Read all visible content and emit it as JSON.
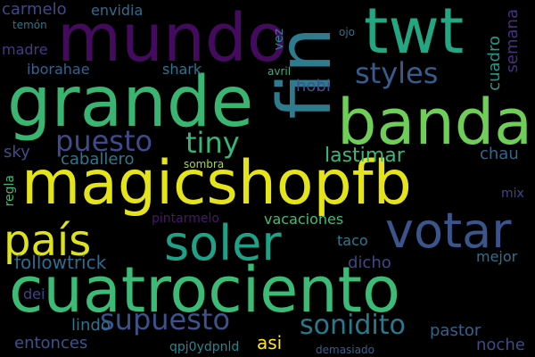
{
  "background": "#000000",
  "words": [
    {
      "text": "mundo",
      "color": "#440a5e"
    },
    {
      "text": "twt",
      "color": "#23a783"
    },
    {
      "text": "grande",
      "color": "#39b571"
    },
    {
      "text": "fin",
      "color": "#2e7b8e"
    },
    {
      "text": "banda",
      "color": "#6ece58"
    },
    {
      "text": "magicshopfb",
      "color": "#e5e419"
    },
    {
      "text": "cuatrociento",
      "color": "#3bbb75"
    },
    {
      "text": "votar",
      "color": "#3a548c"
    },
    {
      "text": "soler",
      "color": "#1fa187"
    },
    {
      "text": "país",
      "color": "#dde318"
    },
    {
      "text": "puesto",
      "color": "#3e4a89"
    },
    {
      "text": "tiny",
      "color": "#35b779"
    },
    {
      "text": "styles",
      "color": "#365c8d"
    },
    {
      "text": "supuesto",
      "color": "#3b528b"
    },
    {
      "text": "sonidito",
      "color": "#2a788e"
    },
    {
      "text": "lastimar",
      "color": "#37b878"
    },
    {
      "text": "followtrick",
      "color": "#2f6b8e"
    },
    {
      "text": "envidia",
      "color": "#2f6c8e"
    },
    {
      "text": "carmelo",
      "color": "#3e4989"
    },
    {
      "text": "madre",
      "color": "#443a83"
    },
    {
      "text": "iborahae",
      "color": "#33638d"
    },
    {
      "text": "shark",
      "color": "#2b748e"
    },
    {
      "text": "hobi",
      "color": "#3b528b"
    },
    {
      "text": "vez",
      "color": "#24868e"
    },
    {
      "text": "ojo",
      "color": "#2c728e"
    },
    {
      "text": "semana",
      "color": "#472f7d"
    },
    {
      "text": "cuadro",
      "color": "#1f9a8a"
    },
    {
      "text": "temón",
      "color": "#2a768e"
    },
    {
      "text": "avril",
      "color": "#2fb47c"
    },
    {
      "text": "sky",
      "color": "#3e4c8a"
    },
    {
      "text": "caballero",
      "color": "#29798e"
    },
    {
      "text": "sombra",
      "color": "#a2da37"
    },
    {
      "text": "chau",
      "color": "#31678e"
    },
    {
      "text": "regla",
      "color": "#3dbc74"
    },
    {
      "text": "mix",
      "color": "#404588"
    },
    {
      "text": "pintarmelo",
      "color": "#481769"
    },
    {
      "text": "vacaciones",
      "color": "#42be71"
    },
    {
      "text": "taco",
      "color": "#287c8e"
    },
    {
      "text": "dicho",
      "color": "#404688"
    },
    {
      "text": "mejor",
      "color": "#2c718e"
    },
    {
      "text": "dei",
      "color": "#424086"
    },
    {
      "text": "lindo",
      "color": "#2c738e"
    },
    {
      "text": "asi",
      "color": "#fde725"
    },
    {
      "text": "pastor",
      "color": "#33628d"
    },
    {
      "text": "entonces",
      "color": "#3b528b"
    },
    {
      "text": "qpj0ydpnld",
      "color": "#25858e"
    },
    {
      "text": "demasiado",
      "color": "#34608d"
    },
    {
      "text": "noche",
      "color": "#3e4a89"
    }
  ]
}
